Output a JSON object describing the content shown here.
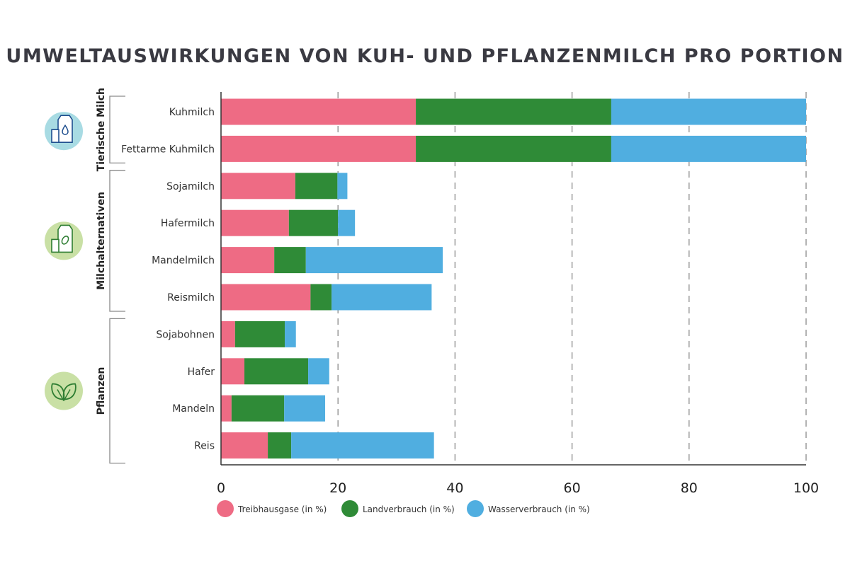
{
  "chart_data": {
    "type": "bar",
    "orientation": "horizontal",
    "stacked": true,
    "title": "UMWELTAUSWIRKUNGEN VON KUH- UND PFLANZENMILCH PRO PORTION",
    "categories": [
      "Kuhmilch",
      "Fettarme Kuhmilch",
      "Sojamilch",
      "Hafermilch",
      "Mandelmilch",
      "Reismilch",
      "Sojabohnen",
      "Hafer",
      "Mandeln",
      "Reis"
    ],
    "groups": [
      {
        "label": "Tierische Milch",
        "categories": [
          "Kuhmilch",
          "Fettarme Kuhmilch"
        ],
        "icon": "milk-carton-icon",
        "icon_bg": "#a8dbe3",
        "icon_color": "#1f4f8f"
      },
      {
        "label": "Milchalternativen",
        "categories": [
          "Sojamilch",
          "Hafermilch",
          "Mandelmilch",
          "Reismilch"
        ],
        "icon": "plant-milk-carton-icon",
        "icon_bg": "#c9e0a5",
        "icon_color": "#2e7d32"
      },
      {
        "label": "Pflanzen",
        "categories": [
          "Sojabohnen",
          "Hafer",
          "Mandeln",
          "Reis"
        ],
        "icon": "leaves-icon",
        "icon_bg": "#c9e0a5",
        "icon_color": "#2e7d32"
      }
    ],
    "series": [
      {
        "name": "Treibhausgase (in %)",
        "color": "#ee6b84",
        "values": [
          33.3,
          33.3,
          12.7,
          11.6,
          9.1,
          15.3,
          2.4,
          4.0,
          1.8,
          8.0
        ]
      },
      {
        "name": "Landverbrauch (in %)",
        "color": "#2f8b37",
        "values": [
          33.4,
          33.4,
          7.2,
          8.4,
          5.4,
          3.6,
          8.5,
          10.9,
          9.0,
          4.0
        ]
      },
      {
        "name": "Wasserverbrauch (in %)",
        "color": "#50aee0",
        "values": [
          33.3,
          33.3,
          1.7,
          2.9,
          23.4,
          17.1,
          1.9,
          3.6,
          7.0,
          24.4
        ]
      }
    ],
    "xlim": [
      0,
      100
    ],
    "xticks": [
      "0",
      "20",
      "40",
      "60",
      "80",
      "100"
    ],
    "grid": "vertical dashed",
    "legend": "bottom"
  }
}
